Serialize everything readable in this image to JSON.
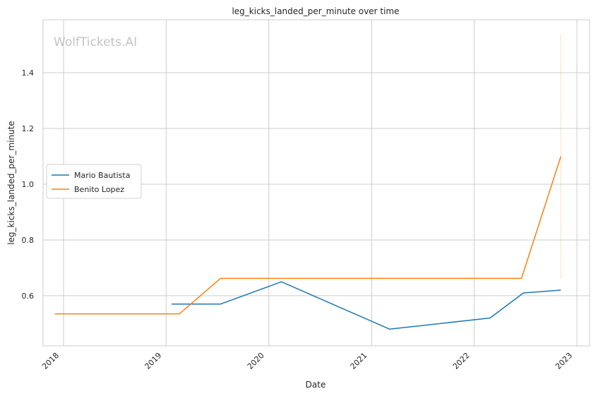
{
  "chart_data": {
    "type": "line",
    "title": "leg_kicks_landed_per_minute over time",
    "xlabel": "Date",
    "ylabel": "leg_kicks_landed_per_minute",
    "watermark": "WolfTickets.AI",
    "x_ticks": [
      "2018",
      "2019",
      "2020",
      "2021",
      "2022",
      "2023"
    ],
    "y_ticks": [
      "0.6",
      "0.8",
      "1.0",
      "1.2",
      "1.4"
    ],
    "xlim": [
      "2017-10-20",
      "2023-02-15"
    ],
    "ylim": [
      0.42,
      1.59
    ],
    "grid": true,
    "legend_position": "center-left",
    "series": [
      {
        "name": "Mario Bautista",
        "color": "#1f77b4",
        "points": [
          {
            "x": "2019-01-20",
            "y": 0.57
          },
          {
            "x": "2019-07-13",
            "y": 0.57
          },
          {
            "x": "2020-02-15",
            "y": 0.65
          },
          {
            "x": "2021-03-06",
            "y": 0.48
          },
          {
            "x": "2022-02-26",
            "y": 0.52
          },
          {
            "x": "2022-06-25",
            "y": 0.61
          },
          {
            "x": "2022-11-05",
            "y": 0.62
          }
        ]
      },
      {
        "name": "Benito Lopez",
        "color": "#ff7f0e",
        "points": [
          {
            "x": "2017-12-01",
            "y": 0.535
          },
          {
            "x": "2019-02-17",
            "y": 0.535
          },
          {
            "x": "2019-07-13",
            "y": 0.662
          },
          {
            "x": "2022-06-18",
            "y": 0.662
          },
          {
            "x": "2022-11-05",
            "y": 1.1
          }
        ],
        "error_band": {
          "x": "2022-11-05",
          "low": 0.66,
          "high": 1.54
        }
      }
    ]
  }
}
